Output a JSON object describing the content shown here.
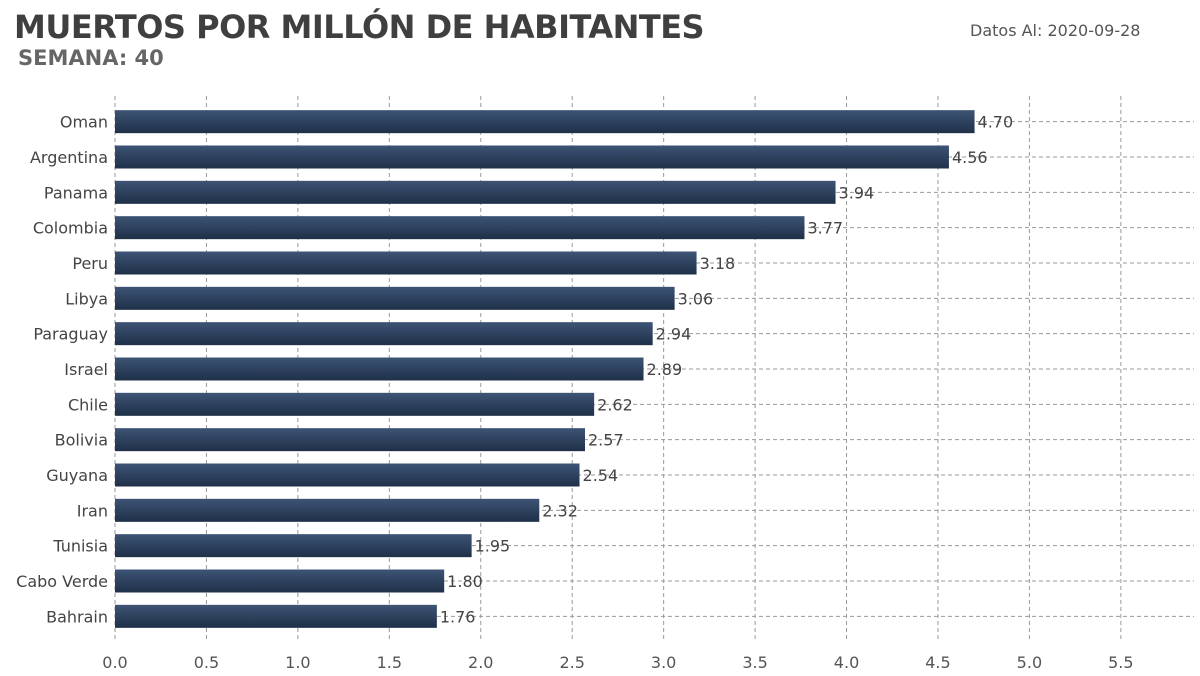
{
  "header": {
    "title": "MUERTOS POR MILLÓN DE HABITANTES",
    "subtitle": "SEMANA: 40",
    "date_prefix": "Datos Al:",
    "date_value": "2020-09-28"
  },
  "chart_data": {
    "type": "bar",
    "orientation": "horizontal",
    "title": "MUERTOS POR MILLÓN DE HABITANTES",
    "subtitle": "SEMANA: 40",
    "categories": [
      "Oman",
      "Argentina",
      "Panama",
      "Colombia",
      "Peru",
      "Libya",
      "Paraguay",
      "Israel",
      "Chile",
      "Bolivia",
      "Guyana",
      "Iran",
      "Tunisia",
      "Cabo Verde",
      "Bahrain"
    ],
    "values": [
      4.7,
      4.56,
      3.94,
      3.77,
      3.18,
      3.06,
      2.94,
      2.89,
      2.62,
      2.57,
      2.54,
      2.32,
      1.95,
      1.8,
      1.76
    ],
    "value_labels": [
      "4.70",
      "4.56",
      "3.94",
      "3.77",
      "3.18",
      "3.06",
      "2.94",
      "2.89",
      "2.62",
      "2.57",
      "2.54",
      "2.32",
      "1.95",
      "1.80",
      "1.76"
    ],
    "xlim": [
      0,
      5.9
    ],
    "xticks": [
      0.0,
      0.5,
      1.0,
      1.5,
      2.0,
      2.5,
      3.0,
      3.5,
      4.0,
      4.5,
      5.0,
      5.5
    ],
    "xtick_labels": [
      "0.0",
      "0.5",
      "1.0",
      "1.5",
      "2.0",
      "2.5",
      "3.0",
      "3.5",
      "4.0",
      "4.5",
      "5.0",
      "5.5"
    ],
    "xlabel": "",
    "ylabel": "",
    "grid": true,
    "bar_color_top": "#3d5475",
    "bar_color_bottom": "#1f3048",
    "grid_color": "#9a9a9a"
  }
}
